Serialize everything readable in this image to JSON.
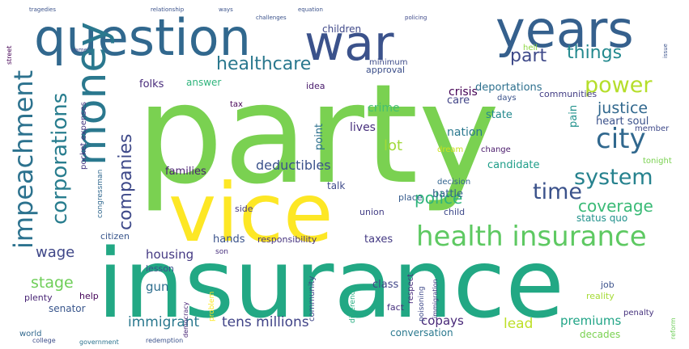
{
  "words": [
    {
      "text": "party",
      "color": "#7ad151"
    },
    {
      "text": "insurance",
      "color": "#22a884"
    },
    {
      "text": "vice",
      "color": "#fde725"
    },
    {
      "text": "question",
      "color": "#31688e"
    },
    {
      "text": "years",
      "color": "#35608d"
    },
    {
      "text": "war",
      "color": "#3b528b"
    },
    {
      "text": "money",
      "color": "#2a788e"
    },
    {
      "text": "health insurance",
      "color": "#5ec962"
    },
    {
      "text": "impeachment",
      "color": "#2c728e"
    },
    {
      "text": "corporations",
      "color": "#287d8e"
    },
    {
      "text": "companies",
      "color": "#3e4989"
    },
    {
      "text": "healthcare",
      "color": "#2a788e"
    },
    {
      "text": "city",
      "color": "#31688e"
    },
    {
      "text": "power",
      "color": "#b5de2b"
    },
    {
      "text": "system",
      "color": "#26828e"
    },
    {
      "text": "time",
      "color": "#3b528b"
    },
    {
      "text": "part",
      "color": "#3e4989"
    },
    {
      "text": "things",
      "color": "#23898e"
    },
    {
      "text": "police",
      "color": "#2fb47c"
    },
    {
      "text": "coverage",
      "color": "#3aba76"
    },
    {
      "text": "justice",
      "color": "#31688e"
    },
    {
      "text": "stage",
      "color": "#6ece58"
    },
    {
      "text": "wage",
      "color": "#3f4788"
    },
    {
      "text": "lot",
      "color": "#a0da39"
    },
    {
      "text": "deductibles",
      "color": "#3b528b"
    },
    {
      "text": "tens millions",
      "color": "#404387"
    },
    {
      "text": "immigrant",
      "color": "#2a788e"
    },
    {
      "text": "lead",
      "color": "#bddf26"
    },
    {
      "text": "copays",
      "color": "#482878"
    },
    {
      "text": "premiums",
      "color": "#20a486"
    },
    {
      "text": "housing",
      "color": "#443983"
    },
    {
      "text": "gun",
      "color": "#2e6e8e"
    },
    {
      "text": "crisis",
      "color": "#440154"
    },
    {
      "text": "crime",
      "color": "#44bf70"
    },
    {
      "text": "deportations",
      "color": "#2d708e"
    },
    {
      "text": "folks",
      "color": "#472a7a"
    },
    {
      "text": "answer",
      "color": "#2fb47c"
    },
    {
      "text": "lives",
      "color": "#472f7d"
    },
    {
      "text": "nation",
      "color": "#2a788e"
    },
    {
      "text": "care",
      "color": "#414487"
    },
    {
      "text": "state",
      "color": "#23898e"
    },
    {
      "text": "pain",
      "color": "#21918c"
    },
    {
      "text": "heart soul",
      "color": "#3b528b"
    },
    {
      "text": "candidate",
      "color": "#1f9e89"
    },
    {
      "text": "battle",
      "color": "#33638d"
    },
    {
      "text": "families",
      "color": "#481f70"
    },
    {
      "text": "hands",
      "color": "#3a538b"
    },
    {
      "text": "responsibility",
      "color": "#46337e"
    },
    {
      "text": "taxes",
      "color": "#443a83"
    },
    {
      "text": "status quo",
      "color": "#21918c"
    },
    {
      "text": "senator",
      "color": "#39568c"
    },
    {
      "text": "class",
      "color": "#404588"
    },
    {
      "text": "conversation",
      "color": "#2a788e"
    },
    {
      "text": "decades",
      "color": "#7ad151"
    },
    {
      "text": "point",
      "color": "#2d708e"
    },
    {
      "text": "talk",
      "color": "#3e4a89"
    },
    {
      "text": "union",
      "color": "#433e85"
    },
    {
      "text": "place",
      "color": "#365c8d"
    },
    {
      "text": "child",
      "color": "#3e4989"
    },
    {
      "text": "lesson",
      "color": "#3b528b"
    },
    {
      "text": "side",
      "color": "#453882"
    },
    {
      "text": "citizen",
      "color": "#39568c"
    },
    {
      "text": "community",
      "color": "#3f4788"
    },
    {
      "text": "respect",
      "color": "#472d7b"
    },
    {
      "text": "fact",
      "color": "#46307e"
    },
    {
      "text": "job",
      "color": "#3b518b"
    },
    {
      "text": "reality",
      "color": "#a5db36"
    },
    {
      "text": "help",
      "color": "#450559"
    },
    {
      "text": "plenty",
      "color": "#482475"
    },
    {
      "text": "world",
      "color": "#31688e"
    },
    {
      "text": "college",
      "color": "#3d4d8a"
    },
    {
      "text": "government",
      "color": "#2c728e"
    },
    {
      "text": "children",
      "color": "#3f4889"
    },
    {
      "text": "idea",
      "color": "#481a6c"
    },
    {
      "text": "approval",
      "color": "#3c4f8a"
    },
    {
      "text": "minimum",
      "color": "#3e4c8a"
    },
    {
      "text": "communities",
      "color": "#433d84"
    },
    {
      "text": "days",
      "color": "#3b528b"
    },
    {
      "text": "hell",
      "color": "#8fd744"
    },
    {
      "text": "change",
      "color": "#48186a"
    },
    {
      "text": "dream",
      "color": "#cae11f"
    },
    {
      "text": "decision",
      "color": "#32648e"
    },
    {
      "text": "pocket expenses",
      "color": "#453781"
    },
    {
      "text": "congressman",
      "color": "#31688e"
    },
    {
      "text": "member",
      "color": "#3e4989"
    },
    {
      "text": "tonight",
      "color": "#7ad151"
    },
    {
      "text": "tax",
      "color": "#440154"
    },
    {
      "text": "penalty",
      "color": "#46327e"
    },
    {
      "text": "difference",
      "color": "#27ad81"
    },
    {
      "text": "poisoning",
      "color": "#3e4989"
    },
    {
      "text": "immigration",
      "color": "#443983"
    },
    {
      "text": "problem",
      "color": "#fde725"
    },
    {
      "text": "democracy",
      "color": "#482475"
    },
    {
      "text": "redemption",
      "color": "#3b528b"
    },
    {
      "text": "reform",
      "color": "#6ece58"
    },
    {
      "text": "street",
      "color": "#440154"
    },
    {
      "text": "name",
      "color": "#3e4989"
    },
    {
      "text": "son",
      "color": "#472f7d"
    },
    {
      "text": "equation",
      "color": "#3b528b"
    },
    {
      "text": "policing",
      "color": "#3e4989"
    },
    {
      "text": "challenges",
      "color": "#3b528b"
    },
    {
      "text": "relationship",
      "color": "#3b528b"
    },
    {
      "text": "tragedies",
      "color": "#3b528b"
    },
    {
      "text": "ways",
      "color": "#3b528b"
    },
    {
      "text": "issue",
      "color": "#3b528b"
    }
  ]
}
